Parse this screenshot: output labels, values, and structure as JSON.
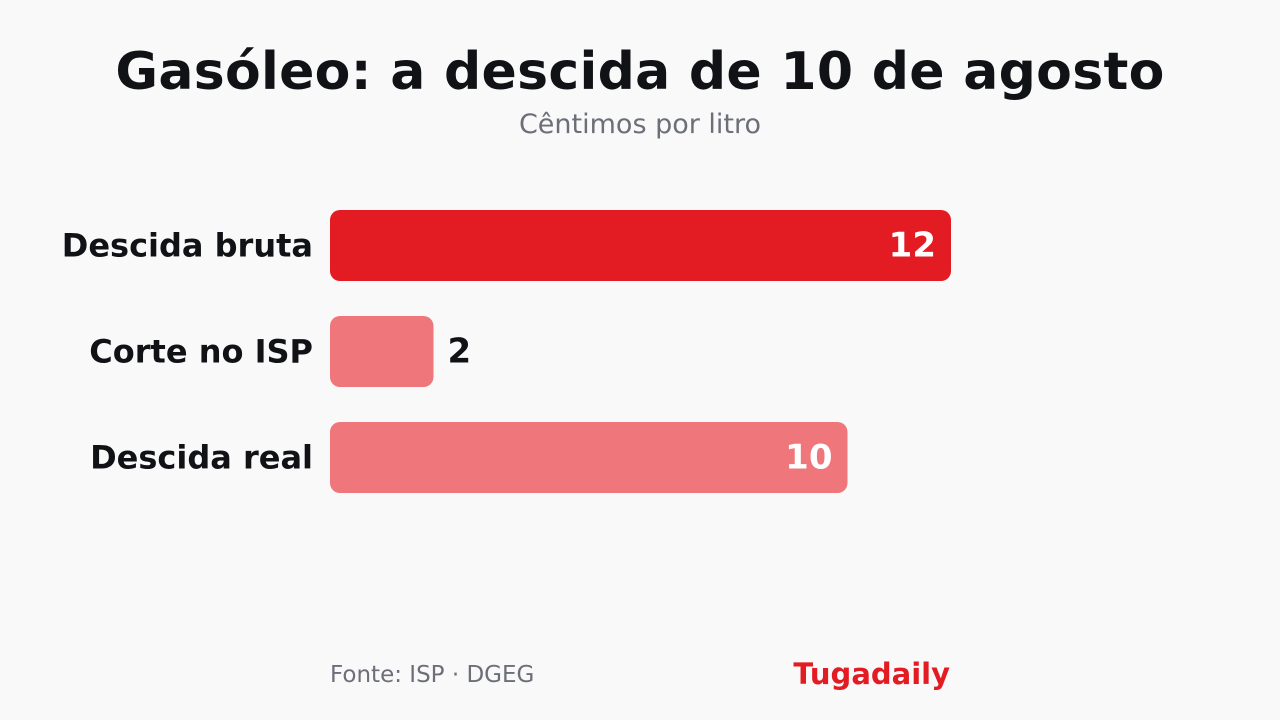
{
  "chart_data": {
    "type": "bar",
    "orientation": "horizontal",
    "title": "Gasóleo: a descida de 10 de agosto",
    "subtitle": "Cêntimos por litro",
    "categories": [
      "Descida bruta",
      "Corte no ISP",
      "Descida real"
    ],
    "values": [
      12,
      2,
      10
    ],
    "data_labels": [
      "12",
      "2",
      "10"
    ],
    "xlim": [
      0,
      12
    ],
    "grid": false,
    "legend": "none",
    "colors": [
      "#e31b23",
      "#ef777b",
      "#ef777b"
    ]
  },
  "footer": {
    "source": "Fonte: ISP · DGEG",
    "brand": "Tugadaily"
  },
  "colors": {
    "accent": "#e31b23",
    "muted_bar": "#ef777b",
    "text": "#111216",
    "muted_text": "#6c6f78",
    "background": "#f9f9f9"
  }
}
